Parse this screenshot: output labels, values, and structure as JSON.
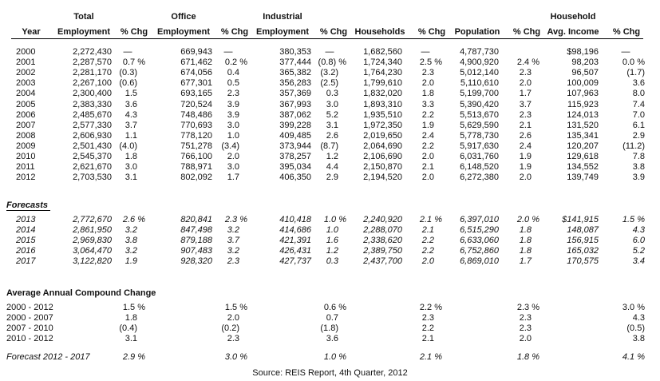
{
  "header": {
    "top": [
      "",
      "Total",
      "",
      "Office",
      "",
      "Industrial",
      "",
      "",
      "",
      "",
      "",
      "Household",
      ""
    ],
    "labels": [
      "Year",
      "Employment",
      "% Chg",
      "Employment",
      "% Chg",
      "Employment",
      "% Chg",
      "Households",
      "% Chg",
      "Population",
      "% Chg",
      "Avg. Income",
      "% Chg"
    ]
  },
  "historical": [
    [
      "2000",
      "2,272,430",
      "—",
      "669,943",
      "—",
      "380,353",
      "—",
      "1,682,560",
      "—",
      "4,787,730",
      "",
      "$98,196",
      "—"
    ],
    [
      "2001",
      "2,287,570",
      "0.7  %",
      "671,462",
      "0.2  %",
      "377,444",
      "(0.8) %",
      "1,724,340",
      "2.5  %",
      "4,900,920",
      "2.4  %",
      "98,203",
      "0.0  %"
    ],
    [
      "2002",
      "2,281,170",
      "(0.3)",
      "674,056",
      "0.4",
      "365,382",
      "(3.2)",
      "1,764,230",
      "2.3",
      "5,012,140",
      "2.3",
      "96,507",
      "(1.7)"
    ],
    [
      "2003",
      "2,267,100",
      "(0.6)",
      "677,301",
      "0.5",
      "356,283",
      "(2.5)",
      "1,799,610",
      "2.0",
      "5,110,610",
      "2.0",
      "100,009",
      "3.6"
    ],
    [
      "2004",
      "2,300,400",
      "1.5",
      "693,165",
      "2.3",
      "357,369",
      "0.3",
      "1,832,020",
      "1.8",
      "5,199,700",
      "1.7",
      "107,963",
      "8.0"
    ],
    [
      "2005",
      "2,383,330",
      "3.6",
      "720,524",
      "3.9",
      "367,993",
      "3.0",
      "1,893,310",
      "3.3",
      "5,390,420",
      "3.7",
      "115,923",
      "7.4"
    ],
    [
      "2006",
      "2,485,670",
      "4.3",
      "748,486",
      "3.9",
      "387,062",
      "5.2",
      "1,935,510",
      "2.2",
      "5,513,670",
      "2.3",
      "124,013",
      "7.0"
    ],
    [
      "2007",
      "2,577,330",
      "3.7",
      "770,693",
      "3.0",
      "399,228",
      "3.1",
      "1,972,350",
      "1.9",
      "5,629,590",
      "2.1",
      "131,520",
      "6.1"
    ],
    [
      "2008",
      "2,606,930",
      "1.1",
      "778,120",
      "1.0",
      "409,485",
      "2.6",
      "2,019,650",
      "2.4",
      "5,778,730",
      "2.6",
      "135,341",
      "2.9"
    ],
    [
      "2009",
      "2,501,430",
      "(4.0)",
      "751,278",
      "(3.4)",
      "373,944",
      "(8.7)",
      "2,064,690",
      "2.2",
      "5,917,630",
      "2.4",
      "120,207",
      "(11.2)"
    ],
    [
      "2010",
      "2,545,370",
      "1.8",
      "766,100",
      "2.0",
      "378,257",
      "1.2",
      "2,106,690",
      "2.0",
      "6,031,760",
      "1.9",
      "129,618",
      "7.8"
    ],
    [
      "2011",
      "2,621,670",
      "3.0",
      "788,971",
      "3.0",
      "395,034",
      "4.4",
      "2,150,870",
      "2.1",
      "6,148,520",
      "1.9",
      "134,552",
      "3.8"
    ],
    [
      "2012",
      "2,703,530",
      "3.1",
      "802,092",
      "1.7",
      "406,350",
      "2.9",
      "2,194,520",
      "2.0",
      "6,272,380",
      "2.0",
      "139,749",
      "3.9"
    ]
  ],
  "forecasts_title": "Forecasts",
  "forecasts": [
    [
      "2013",
      "2,772,670",
      "2.6  %",
      "820,841",
      "2.3  %",
      "410,418",
      "1.0  %",
      "2,240,920",
      "2.1  %",
      "6,397,010",
      "2.0  %",
      "$141,915",
      "1.5  %"
    ],
    [
      "2014",
      "2,861,950",
      "3.2",
      "847,498",
      "3.2",
      "414,686",
      "1.0",
      "2,288,070",
      "2.1",
      "6,515,290",
      "1.8",
      "148,087",
      "4.3"
    ],
    [
      "2015",
      "2,969,830",
      "3.8",
      "879,188",
      "3.7",
      "421,391",
      "1.6",
      "2,338,620",
      "2.2",
      "6,633,060",
      "1.8",
      "156,915",
      "6.0"
    ],
    [
      "2016",
      "3,064,470",
      "3.2",
      "907,483",
      "3.2",
      "426,431",
      "1.2",
      "2,389,750",
      "2.2",
      "6,752,860",
      "1.8",
      "165,032",
      "5.2"
    ],
    [
      "2017",
      "3,122,820",
      "1.9",
      "928,320",
      "2.3",
      "427,737",
      "0.3",
      "2,437,700",
      "2.0",
      "6,869,010",
      "1.7",
      "170,575",
      "3.4"
    ]
  ],
  "aacc_title": "Average Annual Compound Change",
  "aacc": [
    [
      "2000 - 2012",
      "1.5  %",
      "1.5  %",
      "0.6  %",
      "2.2  %",
      "2.3  %",
      "3.0  %"
    ],
    [
      "2000 - 2007",
      "1.8",
      "2.0",
      "0.7",
      "2.3",
      "2.3",
      "4.3"
    ],
    [
      "2007 - 2010",
      "(0.4)",
      "(0.2)",
      "(1.8)",
      "2.2",
      "2.3",
      "(0.5)"
    ],
    [
      "2010 - 2012",
      "3.1",
      "2.3",
      "3.6",
      "2.1",
      "2.0",
      "3.8"
    ]
  ],
  "aacc_forecast": [
    "Forecast 2012 - 2017",
    "2.9  %",
    "3.0  %",
    "1.0  %",
    "2.1  %",
    "1.8  %",
    "4.1  %"
  ],
  "source": "Source: REIS Report, 4th Quarter, 2012"
}
